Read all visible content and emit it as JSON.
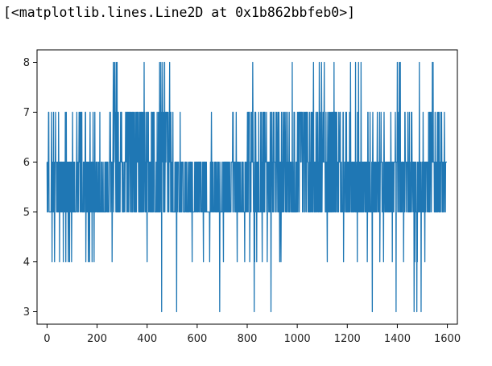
{
  "output_text": "[<matplotlib.lines.Line2D at 0x1b862bbfeb0>]",
  "colors": {
    "line": "#1f77b4",
    "axes": "#000000",
    "text": "#222222"
  },
  "chart_data": {
    "type": "line",
    "title": "",
    "xlabel": "",
    "ylabel": "",
    "xlim": [
      -40,
      1640
    ],
    "ylim": [
      2.75,
      8.25
    ],
    "xticks": [
      0,
      200,
      400,
      600,
      800,
      1000,
      1200,
      1400,
      1600
    ],
    "yticks": [
      3,
      4,
      5,
      6,
      7,
      8
    ],
    "grid": false,
    "series": [
      {
        "n_points": 1599,
        "x_start": 0,
        "baseline_range": [
          5,
          6
        ],
        "segments": [
          {
            "x": [
              0,
              280
            ],
            "v5": 0.45,
            "v6": 0.4,
            "v7": 0.12,
            "v4": 0.03
          },
          {
            "x": [
              280,
              500
            ],
            "v5": 0.3,
            "v6": 0.3,
            "v7": 0.35,
            "v4": 0.05
          },
          {
            "x": [
              500,
              800
            ],
            "v5": 0.5,
            "v6": 0.44,
            "v7": 0.04,
            "v4": 0.02
          },
          {
            "x": [
              800,
              1000
            ],
            "v5": 0.4,
            "v6": 0.35,
            "v7": 0.22,
            "v4": 0.03
          },
          {
            "x": [
              1000,
              1200
            ],
            "v5": 0.35,
            "v6": 0.25,
            "v7": 0.38,
            "v4": 0.02
          },
          {
            "x": [
              1200,
              1400
            ],
            "v5": 0.5,
            "v6": 0.42,
            "v7": 0.05,
            "v4": 0.03
          },
          {
            "x": [
              1400,
              1599
            ],
            "v5": 0.42,
            "v6": 0.4,
            "v7": 0.15,
            "v4": 0.03
          }
        ],
        "spikes_to_8": [
          265,
          270,
          276,
          280,
          388,
          450,
          455,
          462,
          470,
          490,
          822,
          980,
          1065,
          1088,
          1097,
          1108,
          1147,
          1213,
          1233,
          1245,
          1255,
          1400,
          1408,
          1412,
          1488,
          1540,
          1543
        ],
        "dips_to_3": [
          458,
          518,
          690,
          828,
          895,
          1300,
          1395,
          1467,
          1478,
          1495
        ],
        "dips_to_4": [
          20,
          30,
          50,
          65,
          75,
          85,
          90,
          98,
          155,
          165,
          170,
          180,
          188,
          260,
          270,
          400,
          580,
          625,
          650,
          705,
          760,
          790,
          810,
          830,
          838,
          860,
          880,
          930,
          935,
          1120,
          1185,
          1240,
          1280,
          1330,
          1345,
          1380,
          1400,
          1425,
          1470,
          1480,
          1510
        ]
      }
    ]
  }
}
